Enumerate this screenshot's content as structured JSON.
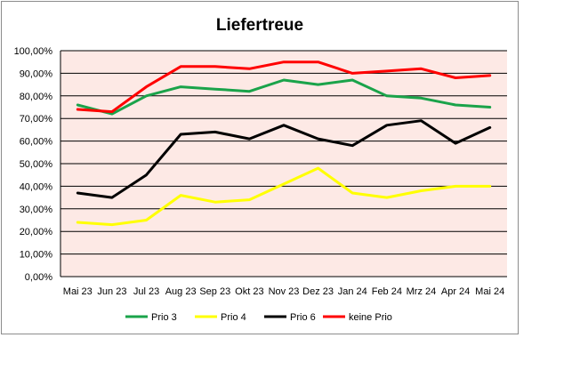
{
  "chart_data": {
    "type": "line",
    "title": "Liefertreue",
    "xlabel": "",
    "ylabel": "",
    "categories": [
      "Mai 23",
      "Jun 23",
      "Jul 23",
      "Aug 23",
      "Sep 23",
      "Okt 23",
      "Nov 23",
      "Dez 23",
      "Jan 24",
      "Feb 24",
      "Mrz 24",
      "Apr 24",
      "Mai 24"
    ],
    "y_tick_labels": [
      "0,00%",
      "10,00%",
      "20,00%",
      "30,00%",
      "40,00%",
      "50,00%",
      "60,00%",
      "70,00%",
      "80,00%",
      "90,00%",
      "100,00%"
    ],
    "ylim": [
      0,
      100
    ],
    "grid": true,
    "legend_position": "bottom",
    "plot_background": "#fde9e5",
    "series": [
      {
        "name": "Prio 3",
        "color": "#1aa34a",
        "values": [
          76,
          72,
          80,
          84,
          83,
          82,
          87,
          85,
          87,
          80,
          79,
          76,
          75
        ]
      },
      {
        "name": "Prio 4",
        "color": "#ffff00",
        "values": [
          24,
          23,
          25,
          36,
          33,
          34,
          41,
          48,
          37,
          35,
          38,
          40,
          40
        ]
      },
      {
        "name": "Prio 6",
        "color": "#000000",
        "values": [
          37,
          35,
          45,
          63,
          64,
          61,
          67,
          61,
          58,
          67,
          69,
          59,
          66
        ]
      },
      {
        "name": "keine Prio",
        "color": "#ff0000",
        "values": [
          74,
          73,
          84,
          93,
          93,
          92,
          95,
          95,
          90,
          91,
          92,
          88,
          89
        ]
      }
    ]
  }
}
